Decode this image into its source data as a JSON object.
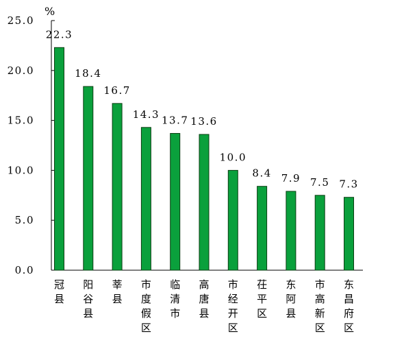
{
  "chart_data": {
    "type": "bar",
    "unit": "%",
    "categories": [
      "冠县",
      "阳谷县",
      "莘县",
      "市度假区",
      "临清市",
      "高唐县",
      "市经开区",
      "茌平区",
      "东阿县",
      "市高新区",
      "东昌府区"
    ],
    "values": [
      22.3,
      18.4,
      16.7,
      14.3,
      13.7,
      13.6,
      10.0,
      8.4,
      7.9,
      7.5,
      7.3
    ],
    "value_labels": [
      "22.3",
      "18.4",
      "16.7",
      "14.3",
      "13.7",
      "13.6",
      "10.0",
      "8.4",
      "7.9",
      "7.5",
      "7.3"
    ],
    "y_ticks": [
      0,
      5,
      10,
      15,
      20,
      25
    ],
    "y_tick_labels": [
      "0.0",
      "5.0",
      "10.0",
      "15.0",
      "20.0",
      "25.0"
    ],
    "ylim": [
      0,
      25
    ],
    "grid": false,
    "bar_color": "#0aa03c",
    "bar_edge_color": "#0b3d12"
  }
}
